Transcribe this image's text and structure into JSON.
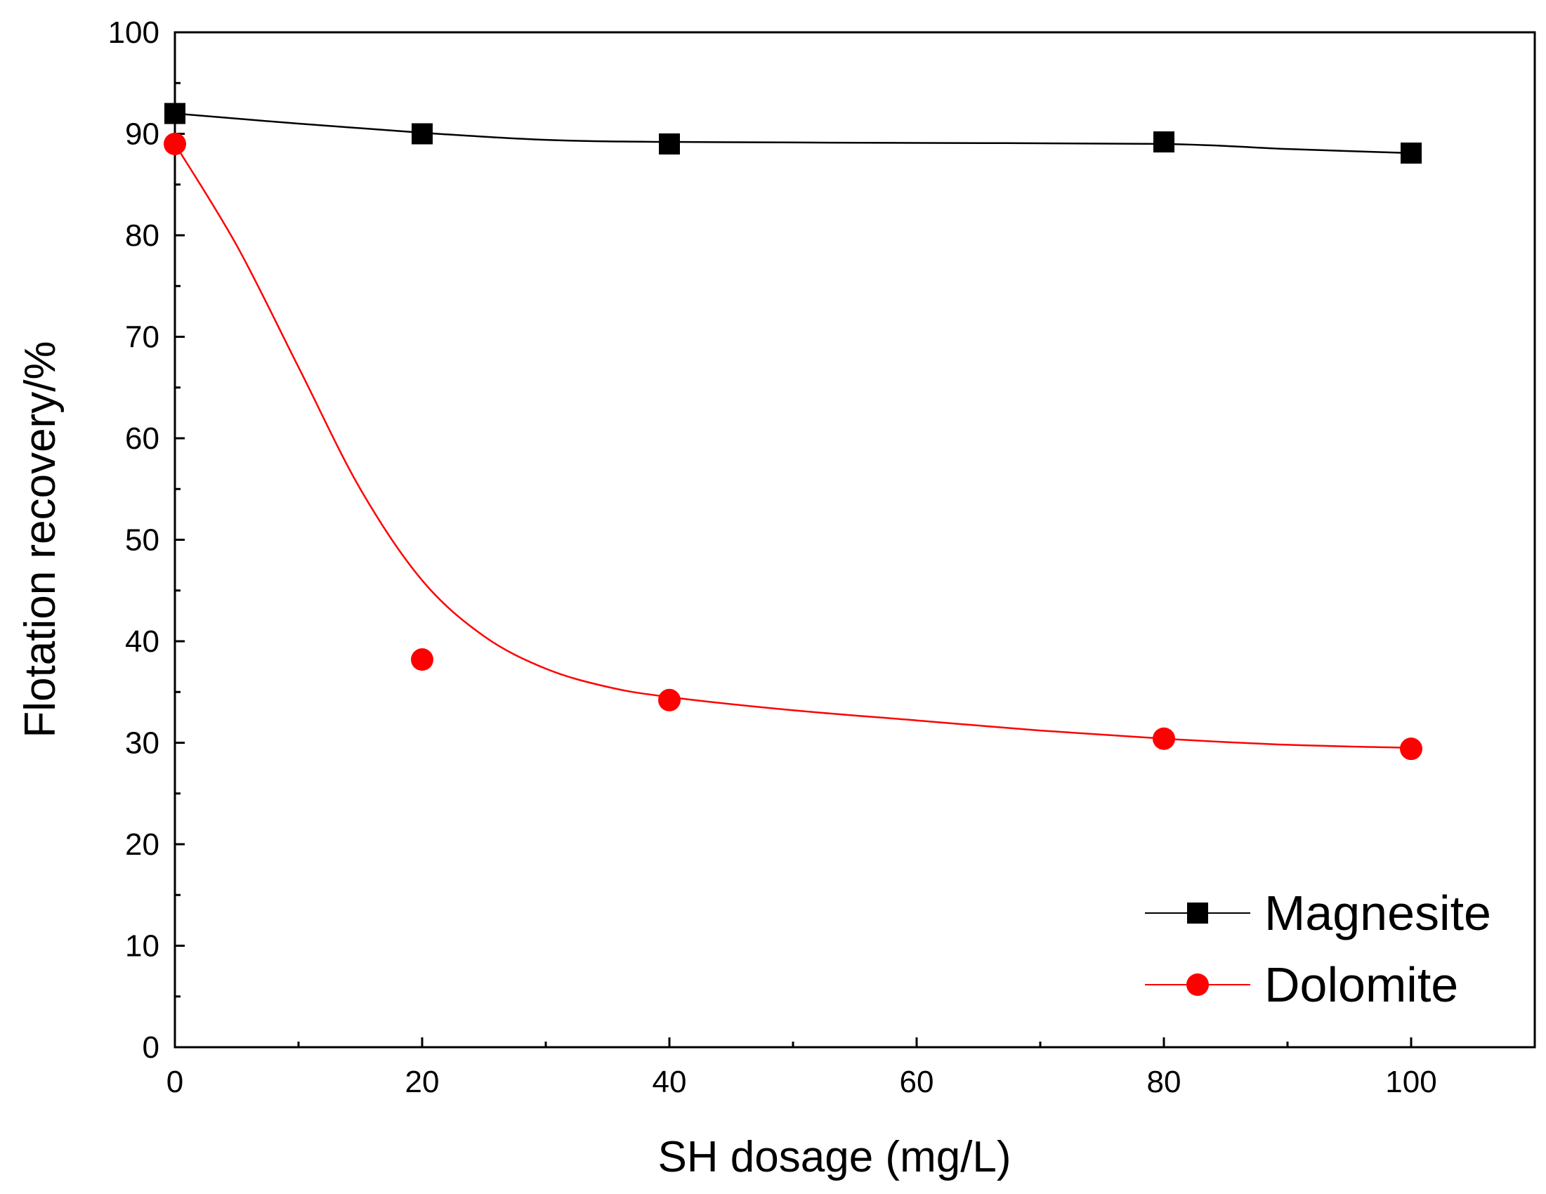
{
  "chart_data": {
    "type": "line",
    "title": "",
    "xlabel": "SH dosage (mg/L)",
    "ylabel": "Flotation recovery/%",
    "xlim": [
      0,
      110
    ],
    "ylim": [
      0,
      100
    ],
    "x_ticks": [
      0,
      20,
      40,
      60,
      80,
      100
    ],
    "y_ticks": [
      0,
      10,
      20,
      30,
      40,
      50,
      60,
      70,
      80,
      90,
      100
    ],
    "x_tick_labels": [
      "0",
      "20",
      "40",
      "60",
      "80",
      "100"
    ],
    "y_tick_labels": [
      "0",
      "10",
      "20",
      "30",
      "40",
      "50",
      "60",
      "70",
      "80",
      "90",
      "100"
    ],
    "legend_position": "bottom-right",
    "grid": false,
    "series": [
      {
        "name": "Magnesite",
        "color": "#000000",
        "marker": "square",
        "x": [
          0,
          20,
          40,
          80,
          100
        ],
        "values": [
          92,
          90,
          89,
          89.2,
          88.1
        ],
        "fit_curve": [
          [
            0,
            92
          ],
          [
            10,
            91
          ],
          [
            20,
            90.1
          ],
          [
            30,
            89.4
          ],
          [
            40,
            89.2
          ],
          [
            60,
            89.1
          ],
          [
            80,
            89
          ],
          [
            90,
            88.5
          ],
          [
            100,
            88.1
          ]
        ]
      },
      {
        "name": "Dolomite",
        "color": "#ff0000",
        "marker": "circle",
        "x": [
          0,
          20,
          40,
          80,
          100
        ],
        "values": [
          89,
          38.2,
          34.2,
          30.4,
          29.4
        ],
        "fit_curve": [
          [
            0,
            89
          ],
          [
            5,
            79
          ],
          [
            10,
            67
          ],
          [
            15,
            55
          ],
          [
            20,
            46
          ],
          [
            25,
            40.5
          ],
          [
            30,
            37.3
          ],
          [
            35,
            35.5
          ],
          [
            40,
            34.5
          ],
          [
            50,
            33.2
          ],
          [
            60,
            32.2
          ],
          [
            70,
            31.2
          ],
          [
            80,
            30.4
          ],
          [
            90,
            29.8
          ],
          [
            100,
            29.5
          ]
        ]
      }
    ]
  }
}
